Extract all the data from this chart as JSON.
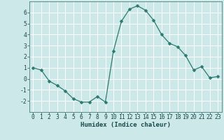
{
  "x": [
    0,
    1,
    2,
    3,
    4,
    5,
    6,
    7,
    8,
    9,
    10,
    11,
    12,
    13,
    14,
    15,
    16,
    17,
    18,
    19,
    20,
    21,
    22,
    23
  ],
  "y": [
    1.0,
    0.8,
    -0.2,
    -0.6,
    -1.1,
    -1.8,
    -2.1,
    -2.1,
    -1.6,
    -2.1,
    2.5,
    5.2,
    6.3,
    6.6,
    6.2,
    5.3,
    4.0,
    3.2,
    2.9,
    2.1,
    0.8,
    1.1,
    0.1,
    0.2
  ],
  "line_color": "#2a7a6f",
  "marker": "D",
  "marker_size": 2.5,
  "bg_color": "#cce8e8",
  "grid_color": "#ffffff",
  "xlabel": "Humidex (Indice chaleur)",
  "xlim": [
    -0.5,
    23.5
  ],
  "ylim": [
    -3,
    7
  ],
  "yticks": [
    -2,
    -1,
    0,
    1,
    2,
    3,
    4,
    5,
    6
  ],
  "xticks": [
    0,
    1,
    2,
    3,
    4,
    5,
    6,
    7,
    8,
    9,
    10,
    11,
    12,
    13,
    14,
    15,
    16,
    17,
    18,
    19,
    20,
    21,
    22,
    23
  ],
  "xlabel_fontsize": 6.5,
  "tick_fontsize": 5.8,
  "spine_color": "#5a8a8a"
}
